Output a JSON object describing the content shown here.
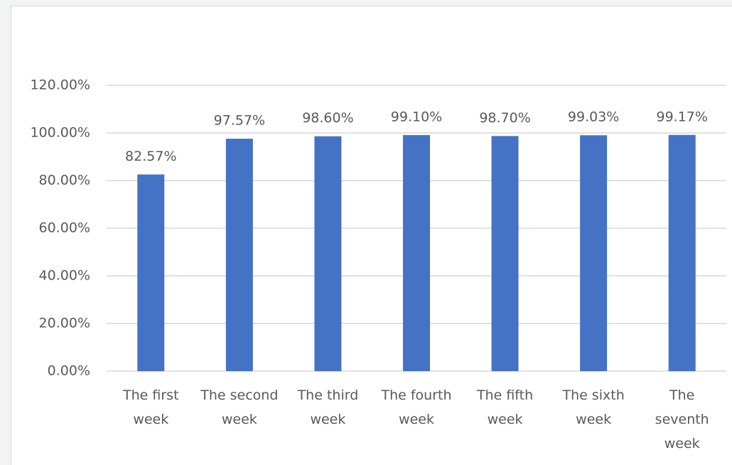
{
  "chart_data": {
    "type": "bar",
    "categories": [
      "The first week",
      "The second week",
      "The third week",
      "The fourth week",
      "The fifth week",
      "The sixth week",
      "The seventh week"
    ],
    "values": [
      82.57,
      97.57,
      98.6,
      99.1,
      98.7,
      99.03,
      99.17
    ],
    "value_labels": [
      "82.57%",
      "97.57%",
      "98.60%",
      "99.10%",
      "98.70%",
      "99.03%",
      "99.17%"
    ],
    "color": "#4472c4",
    "ylim": [
      0,
      120
    ],
    "yticks": [
      {
        "value": 0,
        "label": "0.00%"
      },
      {
        "value": 20,
        "label": "20.00%"
      },
      {
        "value": 40,
        "label": "40.00%"
      },
      {
        "value": 60,
        "label": "60.00%"
      },
      {
        "value": 80,
        "label": "80.00%"
      },
      {
        "value": 100,
        "label": "100.00%"
      },
      {
        "value": 120,
        "label": "120.00%"
      }
    ],
    "grid": true
  }
}
